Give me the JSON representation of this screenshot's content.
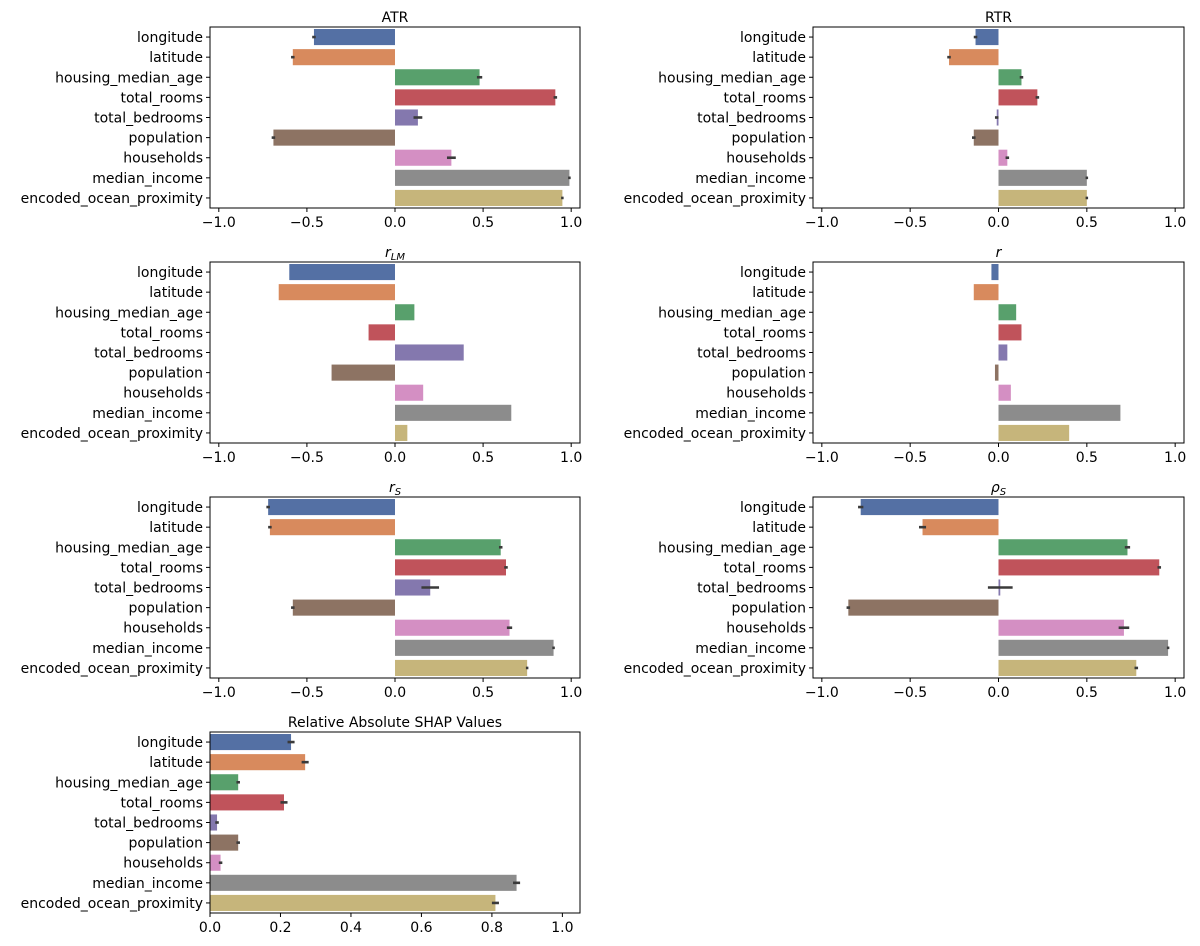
{
  "figure": {
    "description_none": ""
  },
  "features": [
    "longitude",
    "latitude",
    "housing_median_age",
    "total_rooms",
    "total_bedrooms",
    "population",
    "households",
    "median_income",
    "encoded_ocean_proximity"
  ],
  "colors": [
    "#5470a4",
    "#d88a5d",
    "#58a06c",
    "#c0535b",
    "#8478ae",
    "#8d7363",
    "#d48fc3",
    "#8c8c8c",
    "#c6b57b"
  ],
  "chart_data": [
    {
      "type": "bar",
      "orientation": "horizontal",
      "title": "ATR",
      "title_base": "",
      "title_sub": "",
      "xlim": [
        -1.05,
        1.05
      ],
      "xticks": [
        -1.0,
        -0.5,
        0.0,
        0.5,
        1.0
      ],
      "xtick_labels": [
        "−1.0",
        "−0.5",
        "0.0",
        "0.5",
        "1.0"
      ],
      "values": [
        -0.46,
        -0.58,
        0.48,
        0.91,
        0.13,
        -0.69,
        0.32,
        0.99,
        0.95
      ],
      "errors": [
        0.01,
        0.01,
        0.015,
        0.01,
        0.025,
        0.01,
        0.025,
        0.005,
        0.005
      ]
    },
    {
      "type": "bar",
      "orientation": "horizontal",
      "title": "RTR",
      "title_base": "",
      "title_sub": "",
      "xlim": [
        -1.05,
        1.05
      ],
      "xticks": [
        -1.0,
        -0.5,
        0.0,
        0.5,
        1.0
      ],
      "xtick_labels": [
        "−1.0",
        "−0.5",
        "0.0",
        "0.5",
        "1.0"
      ],
      "values": [
        -0.13,
        -0.28,
        0.13,
        0.22,
        -0.01,
        -0.14,
        0.05,
        0.5,
        0.5
      ],
      "errors": [
        0.01,
        0.01,
        0.01,
        0.01,
        0.01,
        0.01,
        0.01,
        0.005,
        0.005
      ]
    },
    {
      "type": "bar",
      "orientation": "horizontal",
      "title": "",
      "title_base": "r",
      "title_sub": "LM",
      "xlim": [
        -1.05,
        1.05
      ],
      "xticks": [
        -1.0,
        -0.5,
        0.0,
        0.5,
        1.0
      ],
      "xtick_labels": [
        "−1.0",
        "−0.5",
        "0.0",
        "0.5",
        "1.0"
      ],
      "values": [
        -0.6,
        -0.66,
        0.11,
        -0.15,
        0.39,
        -0.36,
        0.16,
        0.66,
        0.07
      ],
      "errors": [
        0,
        0,
        0,
        0,
        0,
        0,
        0,
        0,
        0
      ]
    },
    {
      "type": "bar",
      "orientation": "horizontal",
      "title": "r",
      "title_base": "",
      "title_sub": "",
      "xlim": [
        -1.05,
        1.05
      ],
      "xticks": [
        -1.0,
        -0.5,
        0.0,
        0.5,
        1.0
      ],
      "xtick_labels": [
        "−1.0",
        "−0.5",
        "0.0",
        "0.5",
        "1.0"
      ],
      "values": [
        -0.04,
        -0.14,
        0.1,
        0.13,
        0.05,
        -0.02,
        0.07,
        0.69,
        0.4
      ],
      "errors": [
        0,
        0,
        0,
        0,
        0,
        0,
        0,
        0,
        0
      ]
    },
    {
      "type": "bar",
      "orientation": "horizontal",
      "title": "",
      "title_base": "r",
      "title_sub": "S",
      "xlim": [
        -1.05,
        1.05
      ],
      "xticks": [
        -1.0,
        -0.5,
        0.0,
        0.5,
        1.0
      ],
      "xtick_labels": [
        "−1.0",
        "−0.5",
        "0.0",
        "0.5",
        "1.0"
      ],
      "values": [
        -0.72,
        -0.71,
        0.6,
        0.63,
        0.2,
        -0.58,
        0.65,
        0.9,
        0.75
      ],
      "errors": [
        0.01,
        0.01,
        0.01,
        0.01,
        0.05,
        0.01,
        0.015,
        0.005,
        0.005
      ]
    },
    {
      "type": "bar",
      "orientation": "horizontal",
      "title": "",
      "title_base": "ρ",
      "title_sub": "S",
      "xlim": [
        -1.05,
        1.05
      ],
      "xticks": [
        -1.0,
        -0.5,
        0.0,
        0.5,
        1.0
      ],
      "xtick_labels": [
        "−1.0",
        "−0.5",
        "0.0",
        "0.5",
        "1.0"
      ],
      "values": [
        -0.78,
        -0.43,
        0.73,
        0.91,
        0.01,
        -0.85,
        0.71,
        0.96,
        0.78
      ],
      "errors": [
        0.015,
        0.02,
        0.015,
        0.01,
        0.07,
        0.01,
        0.03,
        0.005,
        0.01
      ]
    },
    {
      "type": "bar",
      "orientation": "horizontal",
      "title": "Relative Absolute SHAP Values",
      "title_base": "",
      "title_sub": "",
      "xlim": [
        0,
        1.05
      ],
      "xticks": [
        0.0,
        0.2,
        0.4,
        0.6,
        0.8,
        1.0
      ],
      "xtick_labels": [
        "0.0",
        "0.2",
        "0.4",
        "0.6",
        "0.8",
        "1.0"
      ],
      "values": [
        0.23,
        0.27,
        0.08,
        0.21,
        0.02,
        0.08,
        0.03,
        0.87,
        0.81
      ],
      "errors": [
        0.01,
        0.01,
        0.005,
        0.01,
        0.005,
        0.005,
        0.005,
        0.01,
        0.01
      ]
    }
  ]
}
